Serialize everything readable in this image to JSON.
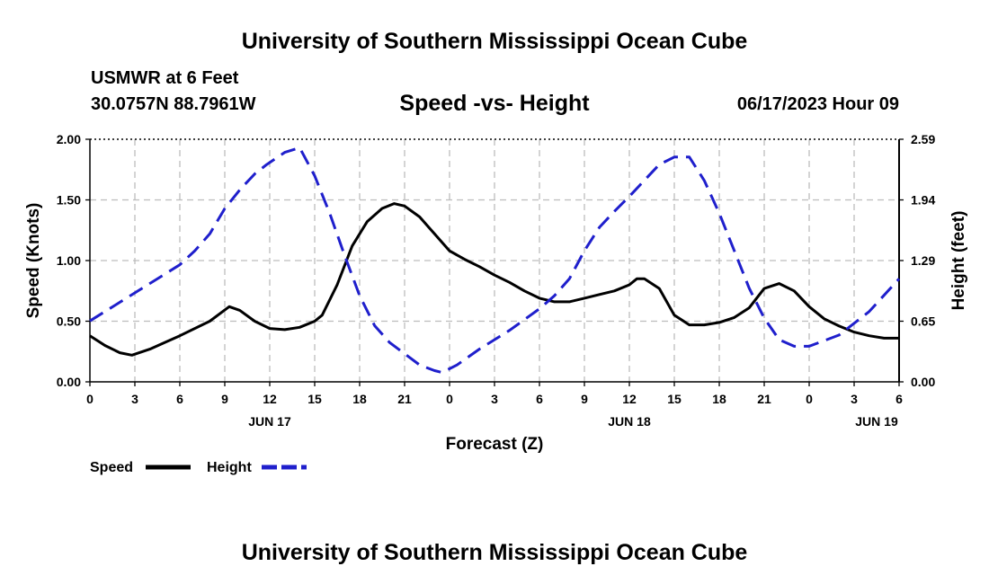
{
  "page": {
    "title_top": "University of Southern Mississippi Ocean Cube",
    "title_bottom": "University of Southern Mississippi Ocean Cube",
    "station": "USMWR at 6 Feet",
    "coords": "30.0757N  88.7961W",
    "subtitle": "Speed -vs- Height",
    "datetime": "06/17/2023 Hour 09"
  },
  "chart_data": {
    "type": "line",
    "title": "Speed -vs- Height",
    "xlabel": "Forecast (Z)",
    "ylabel_left": "Speed (Knots)",
    "ylabel_right": "Height (feet)",
    "x_hours_range": [
      0,
      54
    ],
    "x_ticks": [
      "0",
      "3",
      "6",
      "9",
      "12",
      "15",
      "18",
      "21",
      "0",
      "3",
      "6",
      "9",
      "12",
      "15",
      "18",
      "21",
      "0",
      "3",
      "6"
    ],
    "date_labels": [
      {
        "label": "JUN 17",
        "hour": 12
      },
      {
        "label": "JUN 18",
        "hour": 36
      },
      {
        "label": "JUN 19",
        "hour": 52.5
      }
    ],
    "y_left_range": [
      0,
      2.0
    ],
    "y_left_ticks": [
      "0.00",
      "0.50",
      "1.00",
      "1.50",
      "2.00"
    ],
    "y_right_range": [
      0,
      2.59
    ],
    "y_right_ticks": [
      "0.00",
      "0.65",
      "1.29",
      "1.94",
      "2.59"
    ],
    "grid": true,
    "series": [
      {
        "name": "Speed",
        "axis": "left",
        "color": "#000000",
        "style": "solid",
        "x": [
          0,
          1,
          2,
          2.8,
          4,
          6,
          8,
          9.3,
          10,
          11,
          12,
          13,
          14,
          15,
          15.5,
          16.5,
          17.5,
          18.5,
          19.5,
          20.3,
          21,
          22,
          23,
          24,
          25,
          26,
          27,
          28,
          29,
          30,
          31,
          32,
          33,
          34,
          35,
          36,
          36.5,
          37,
          38,
          39,
          40,
          41,
          42,
          43,
          44,
          45,
          46,
          47,
          48,
          49,
          50,
          51,
          52,
          53,
          54
        ],
        "y": [
          0.38,
          0.3,
          0.24,
          0.22,
          0.27,
          0.38,
          0.5,
          0.62,
          0.59,
          0.5,
          0.44,
          0.43,
          0.45,
          0.5,
          0.55,
          0.8,
          1.12,
          1.32,
          1.43,
          1.47,
          1.45,
          1.36,
          1.22,
          1.08,
          1.01,
          0.95,
          0.88,
          0.82,
          0.75,
          0.69,
          0.66,
          0.66,
          0.69,
          0.72,
          0.75,
          0.8,
          0.85,
          0.85,
          0.77,
          0.55,
          0.47,
          0.47,
          0.49,
          0.53,
          0.61,
          0.77,
          0.81,
          0.75,
          0.62,
          0.52,
          0.46,
          0.41,
          0.38,
          0.36,
          0.36
        ]
      },
      {
        "name": "Height",
        "axis": "right",
        "color": "#1f1fcc",
        "style": "dashed",
        "x": [
          0,
          2,
          4,
          6,
          7,
          8,
          9,
          10,
          11,
          11.8,
          13,
          14,
          15,
          16,
          17,
          18,
          19,
          20,
          21,
          22,
          23,
          23.5,
          24.5,
          26,
          28,
          30,
          31,
          32,
          33,
          34,
          35,
          36,
          36.7,
          38,
          39,
          40,
          41,
          42,
          43,
          44,
          45,
          46,
          47,
          48,
          50,
          52,
          54
        ],
        "y": [
          0.65,
          0.85,
          1.05,
          1.25,
          1.4,
          1.58,
          1.85,
          2.05,
          2.22,
          2.32,
          2.45,
          2.5,
          2.2,
          1.8,
          1.35,
          0.92,
          0.6,
          0.42,
          0.3,
          0.18,
          0.12,
          0.1,
          0.18,
          0.35,
          0.55,
          0.78,
          0.92,
          1.1,
          1.4,
          1.65,
          1.82,
          1.98,
          2.1,
          2.32,
          2.4,
          2.4,
          2.15,
          1.8,
          1.4,
          1.0,
          0.68,
          0.45,
          0.38,
          0.38,
          0.5,
          0.75,
          1.1
        ]
      }
    ],
    "legend": [
      {
        "name": "Speed",
        "color": "#000000",
        "style": "solid"
      },
      {
        "name": "Height",
        "color": "#1f1fcc",
        "style": "dashed"
      }
    ],
    "legend_position": "bottom-left"
  }
}
